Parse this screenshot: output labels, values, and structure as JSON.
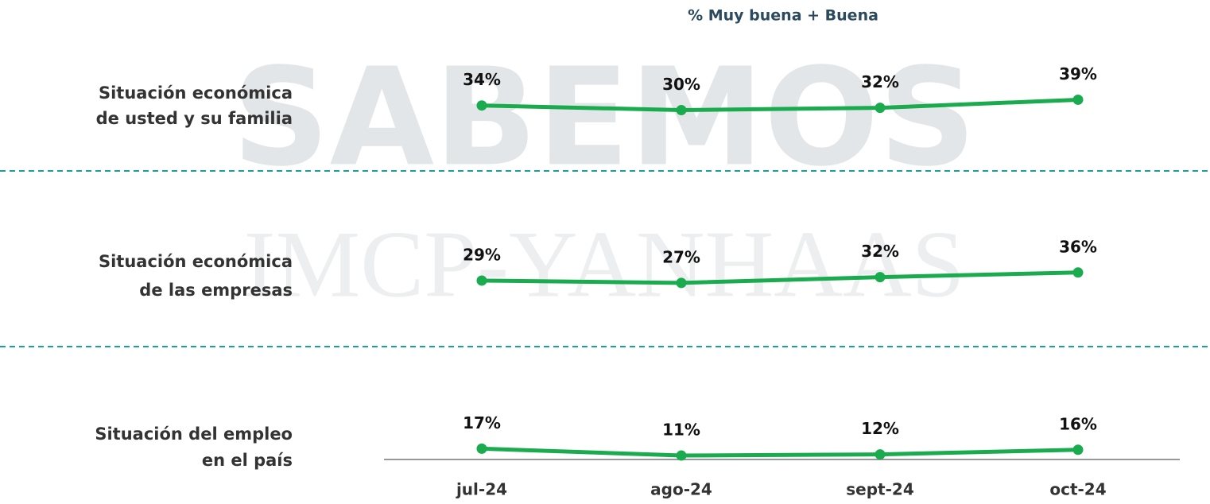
{
  "title": "% Muy buena  + Buena",
  "watermark": [
    "SABEMOS",
    "IMCP-YANHAAS"
  ],
  "chart_data": [
    {
      "type": "line",
      "title": [
        "Situación económica",
        "de usted  y su familia"
      ],
      "color": "#1aab4f",
      "values": [
        34,
        30,
        32,
        39
      ],
      "value_labels": [
        "34%",
        "30%",
        "32%",
        "39%"
      ],
      "ylim": [
        0,
        100
      ]
    },
    {
      "type": "line",
      "title": [
        "Situación económica",
        "de las empresas"
      ],
      "color": "#1aab4f",
      "values": [
        29,
        27,
        32,
        36
      ],
      "value_labels": [
        "29%",
        "27%",
        "32%",
        "36%"
      ],
      "ylim": [
        0,
        100
      ]
    },
    {
      "type": "line",
      "title": [
        "Situación del empleo",
        "en el país"
      ],
      "color": "#1aab4f",
      "categories": [
        "jul-24",
        "ago-24",
        "sept-24",
        "oct-24"
      ],
      "values": [
        17,
        11,
        12,
        16
      ],
      "value_labels": [
        "17%",
        "11%",
        "12%",
        "16%"
      ],
      "ylim": [
        0,
        100
      ]
    }
  ]
}
